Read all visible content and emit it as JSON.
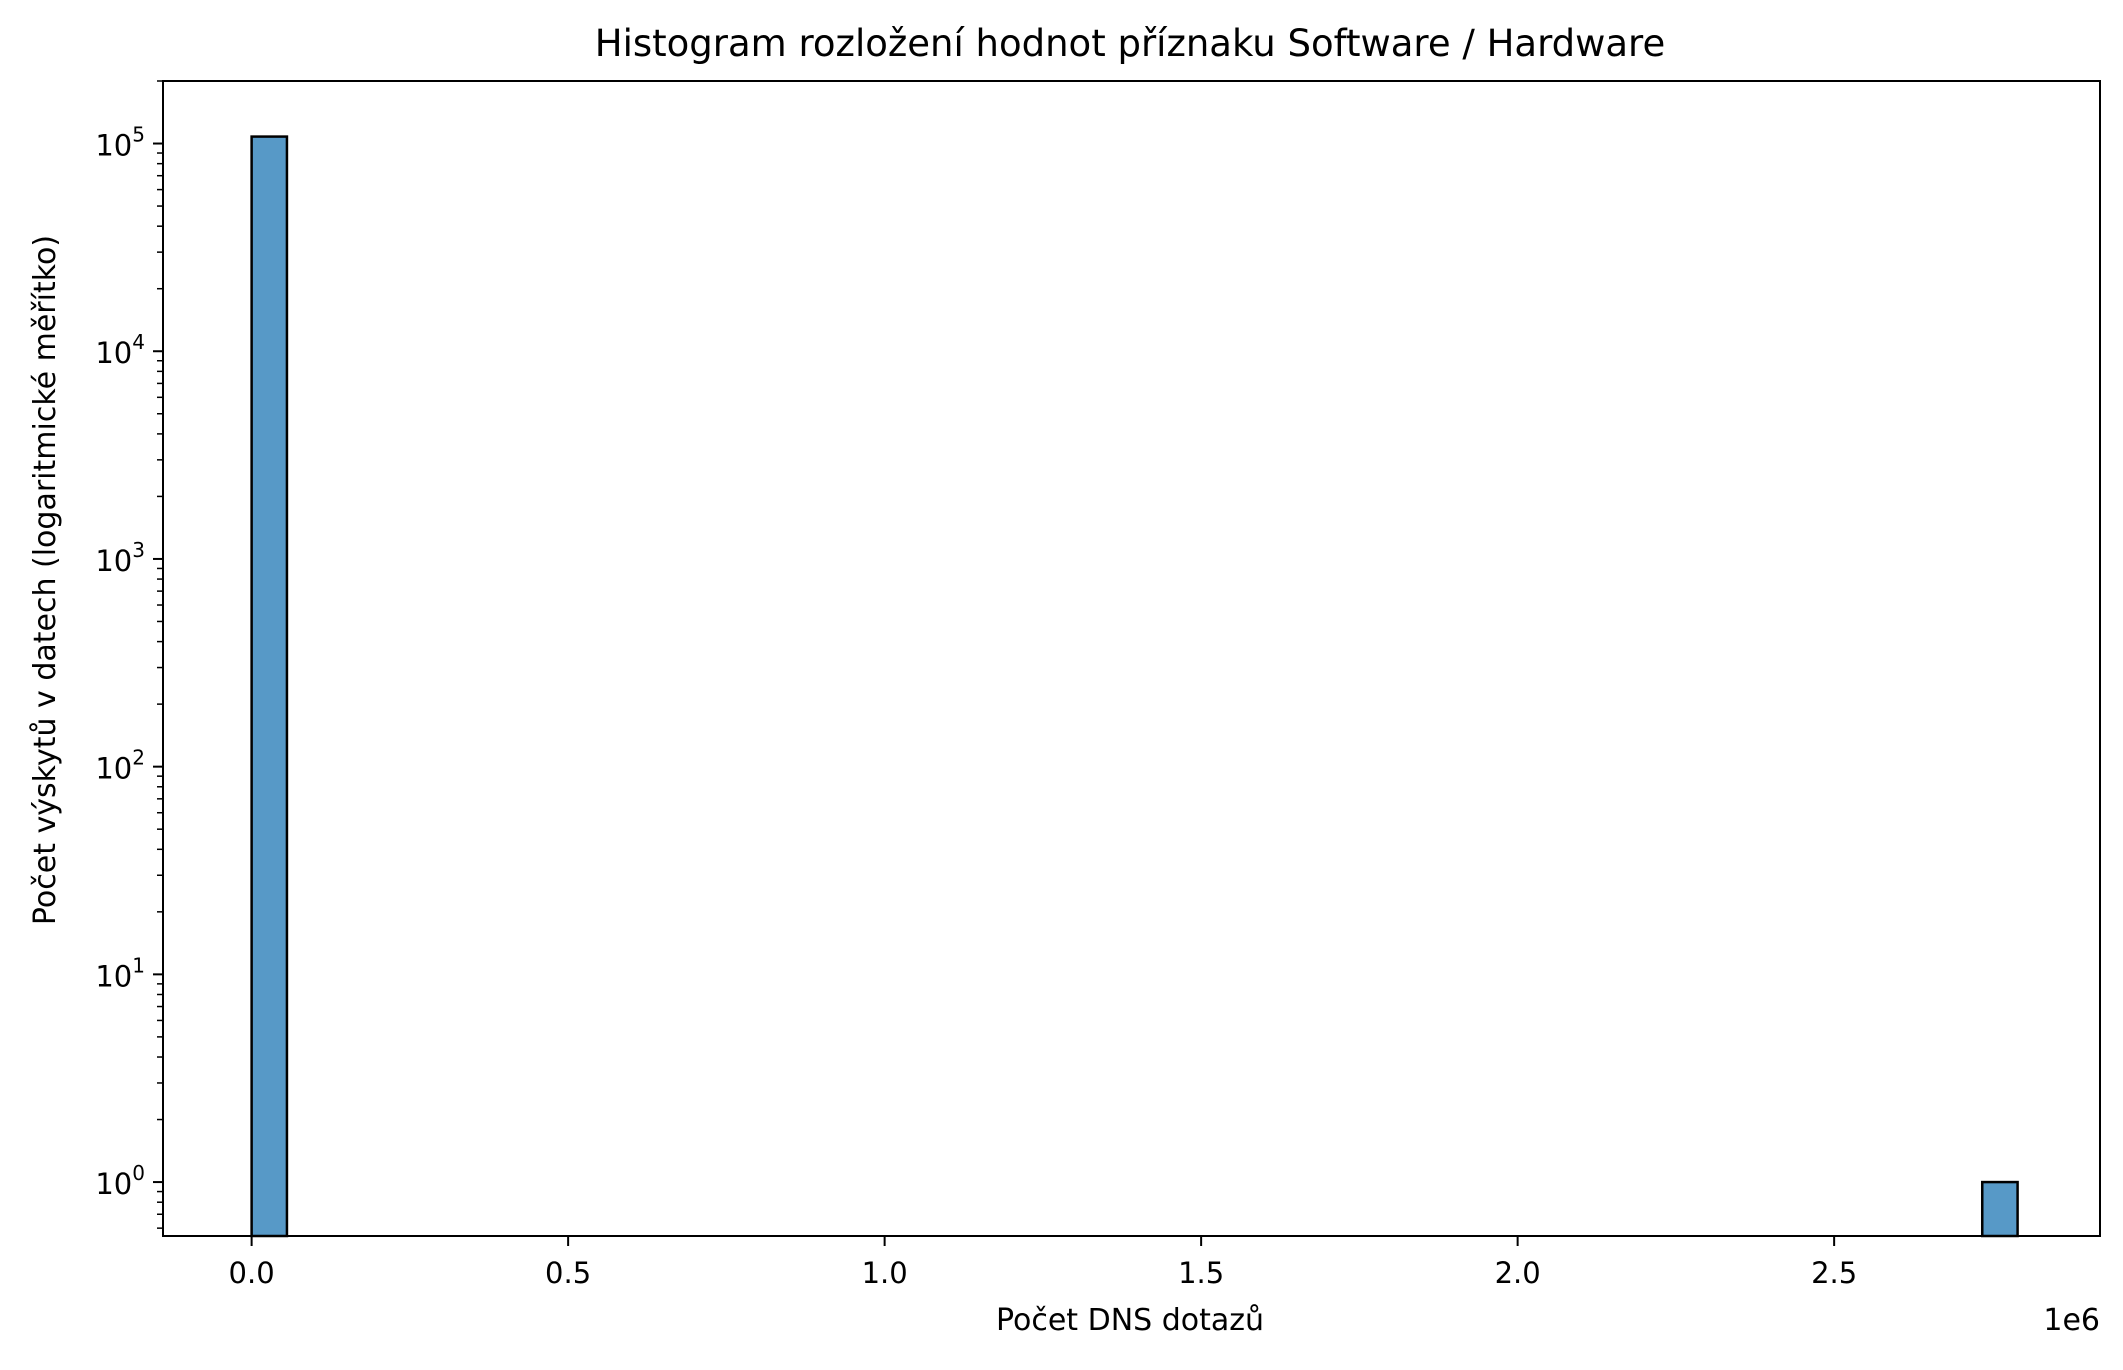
{
  "chart_data": {
    "type": "bar",
    "title": "Histogram rozložení hodnot příznaku Software / Hardware",
    "xlabel": "Počet DNS dotazů",
    "ylabel": "Počet výskytů v datech (logaritmické měřítko)",
    "x_offset_label": "1e6",
    "x_scale": "linear",
    "y_scale": "log",
    "xlim": [
      -140000,
      2920000
    ],
    "ylim": [
      0.55,
      200000
    ],
    "grid": false,
    "legend": "none",
    "bar_color": "#5799c7",
    "edge_color": "#000000",
    "x_ticks": [
      {
        "value": 0,
        "label": "0.0"
      },
      {
        "value": 500000,
        "label": "0.5"
      },
      {
        "value": 1000000,
        "label": "1.0"
      },
      {
        "value": 1500000,
        "label": "1.5"
      },
      {
        "value": 2000000,
        "label": "2.0"
      },
      {
        "value": 2500000,
        "label": "2.5"
      }
    ],
    "y_ticks": [
      {
        "value": 1,
        "base": "10",
        "exp": "0"
      },
      {
        "value": 10,
        "base": "10",
        "exp": "1"
      },
      {
        "value": 100,
        "base": "10",
        "exp": "2"
      },
      {
        "value": 1000,
        "base": "10",
        "exp": "3"
      },
      {
        "value": 10000,
        "base": "10",
        "exp": "4"
      },
      {
        "value": 100000,
        "base": "10",
        "exp": "5"
      }
    ],
    "bins": [
      {
        "x_start": 0,
        "x_end": 55800,
        "count": 108000
      },
      {
        "x_start": 2734000,
        "x_end": 2789800,
        "count": 1
      }
    ]
  }
}
